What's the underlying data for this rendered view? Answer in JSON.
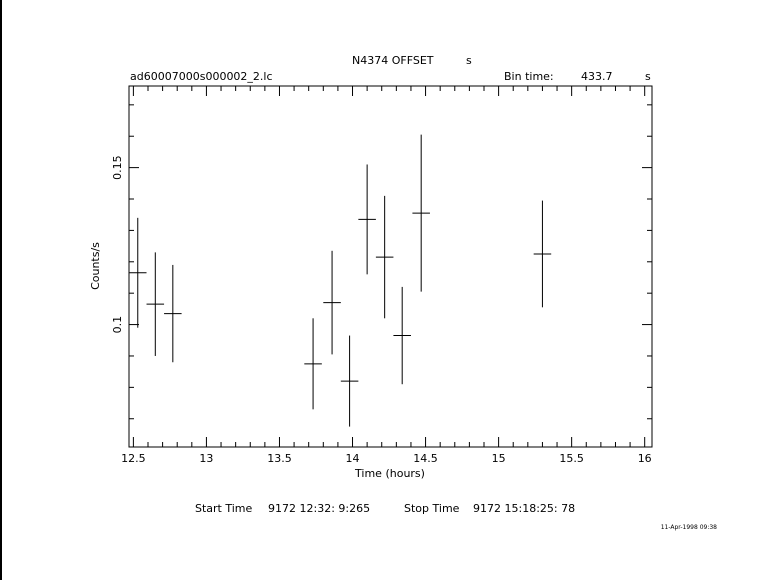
{
  "header": {
    "object": "N4374 OFFSET",
    "object_unit": "s",
    "filename": "ad60007000s000002_2.lc",
    "bin_label": "Bin time:",
    "bin_value": "433.7",
    "bin_unit": "s"
  },
  "footer": {
    "start_label": "Start Time",
    "start_value": "9172 12:32: 9:265",
    "stop_label": "Stop Time",
    "stop_value": "9172 15:18:25: 78",
    "stamp": "11-Apr-1998 09:38"
  },
  "chart_data": {
    "type": "scatter",
    "xlabel": "Time (hours)",
    "ylabel": "Counts/s",
    "xlim": [
      12.47,
      16.05
    ],
    "ylim": [
      0.061,
      0.176
    ],
    "x_ticks": [
      "12.5",
      "13",
      "13.5",
      "14",
      "14.5",
      "15",
      "15.5",
      "16"
    ],
    "x_tick_values": [
      12.5,
      13,
      13.5,
      14,
      14.5,
      15,
      15.5,
      16
    ],
    "y_ticks": [
      "0.1",
      "0.15"
    ],
    "y_tick_values": [
      0.1,
      0.15
    ],
    "grid": false,
    "points": [
      {
        "x": 12.53,
        "xerr": 0.06,
        "y": 0.1165,
        "yerr": 0.0175
      },
      {
        "x": 12.65,
        "xerr": 0.06,
        "y": 0.1065,
        "yerr": 0.0165
      },
      {
        "x": 12.77,
        "xerr": 0.06,
        "y": 0.1035,
        "yerr": 0.0155
      },
      {
        "x": 13.73,
        "xerr": 0.06,
        "y": 0.0875,
        "yerr": 0.0145
      },
      {
        "x": 13.86,
        "xerr": 0.06,
        "y": 0.107,
        "yerr": 0.0165
      },
      {
        "x": 13.98,
        "xerr": 0.06,
        "y": 0.082,
        "yerr": 0.0145
      },
      {
        "x": 14.1,
        "xerr": 0.06,
        "y": 0.1335,
        "yerr": 0.0175
      },
      {
        "x": 14.22,
        "xerr": 0.06,
        "y": 0.1215,
        "yerr": 0.0195
      },
      {
        "x": 14.34,
        "xerr": 0.06,
        "y": 0.0965,
        "yerr": 0.0155
      },
      {
        "x": 14.47,
        "xerr": 0.06,
        "y": 0.1355,
        "yerr": 0.025
      },
      {
        "x": 15.3,
        "xerr": 0.06,
        "y": 0.1225,
        "yerr": 0.017
      }
    ]
  }
}
